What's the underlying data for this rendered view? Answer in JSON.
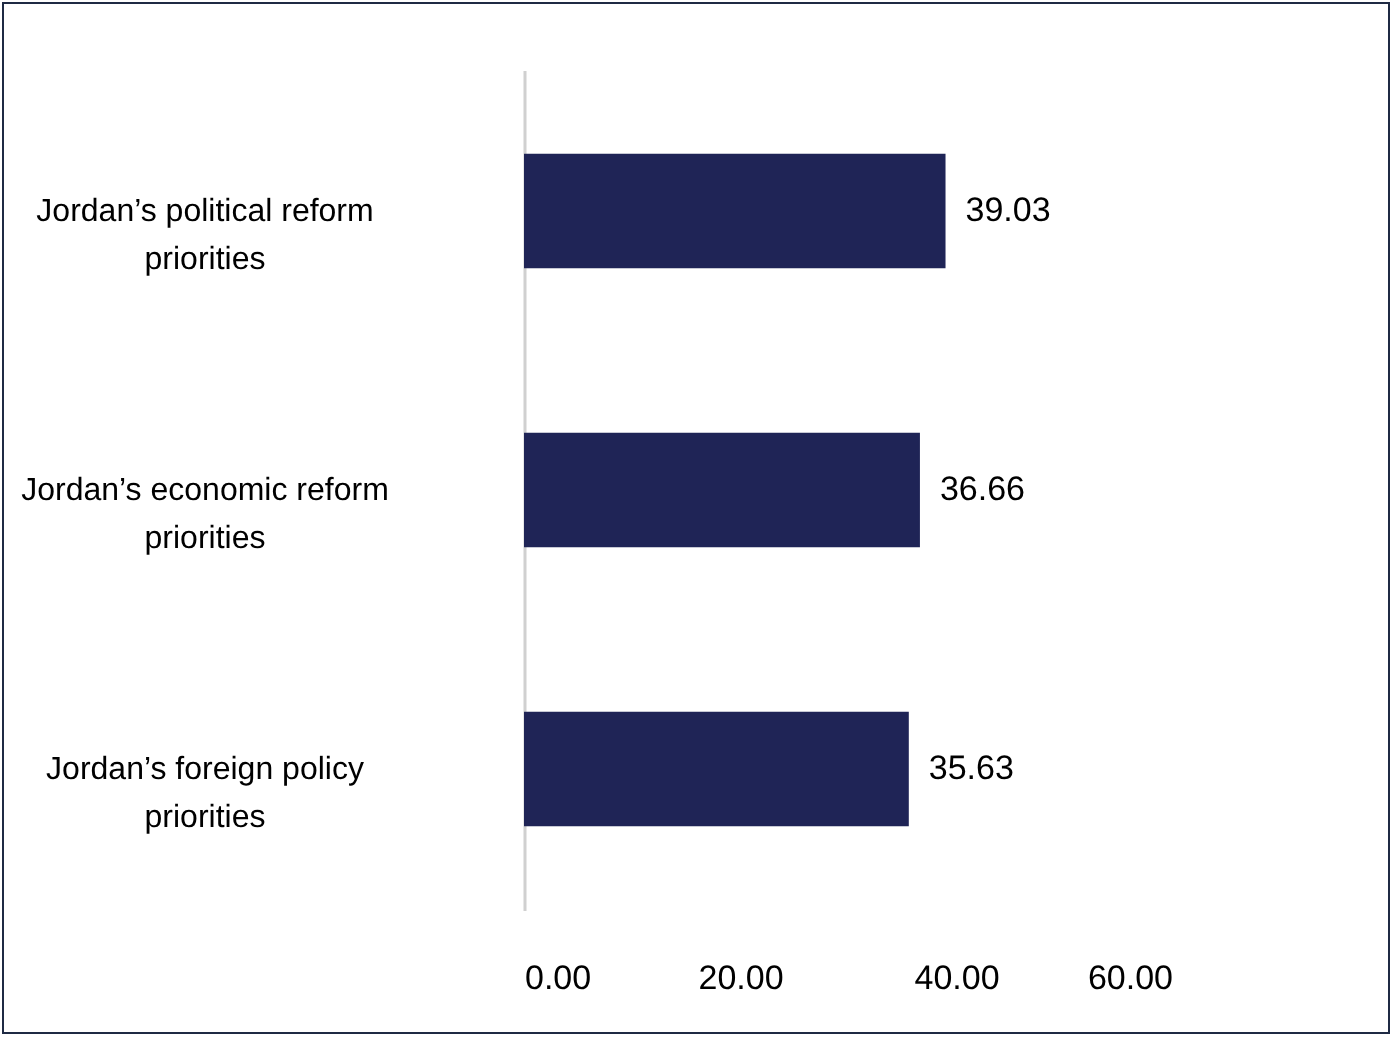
{
  "chart_data": {
    "type": "bar",
    "orientation": "horizontal",
    "categories": [
      "Jordan’s political reform priorities",
      "Jordan’s economic reform priorities",
      "Jordan’s foreign policy priorities"
    ],
    "values": [
      39.03,
      36.66,
      35.63
    ],
    "color": "#1f2456",
    "xlim": [
      0,
      60
    ],
    "xticks": [
      {
        "value": 0,
        "label": "0.00"
      },
      {
        "value": 20,
        "label": "20.00"
      },
      {
        "value": 40,
        "label": "40.00"
      },
      {
        "value": 60,
        "label": "60.00"
      }
    ],
    "data_labels": true,
    "grid": false
  }
}
